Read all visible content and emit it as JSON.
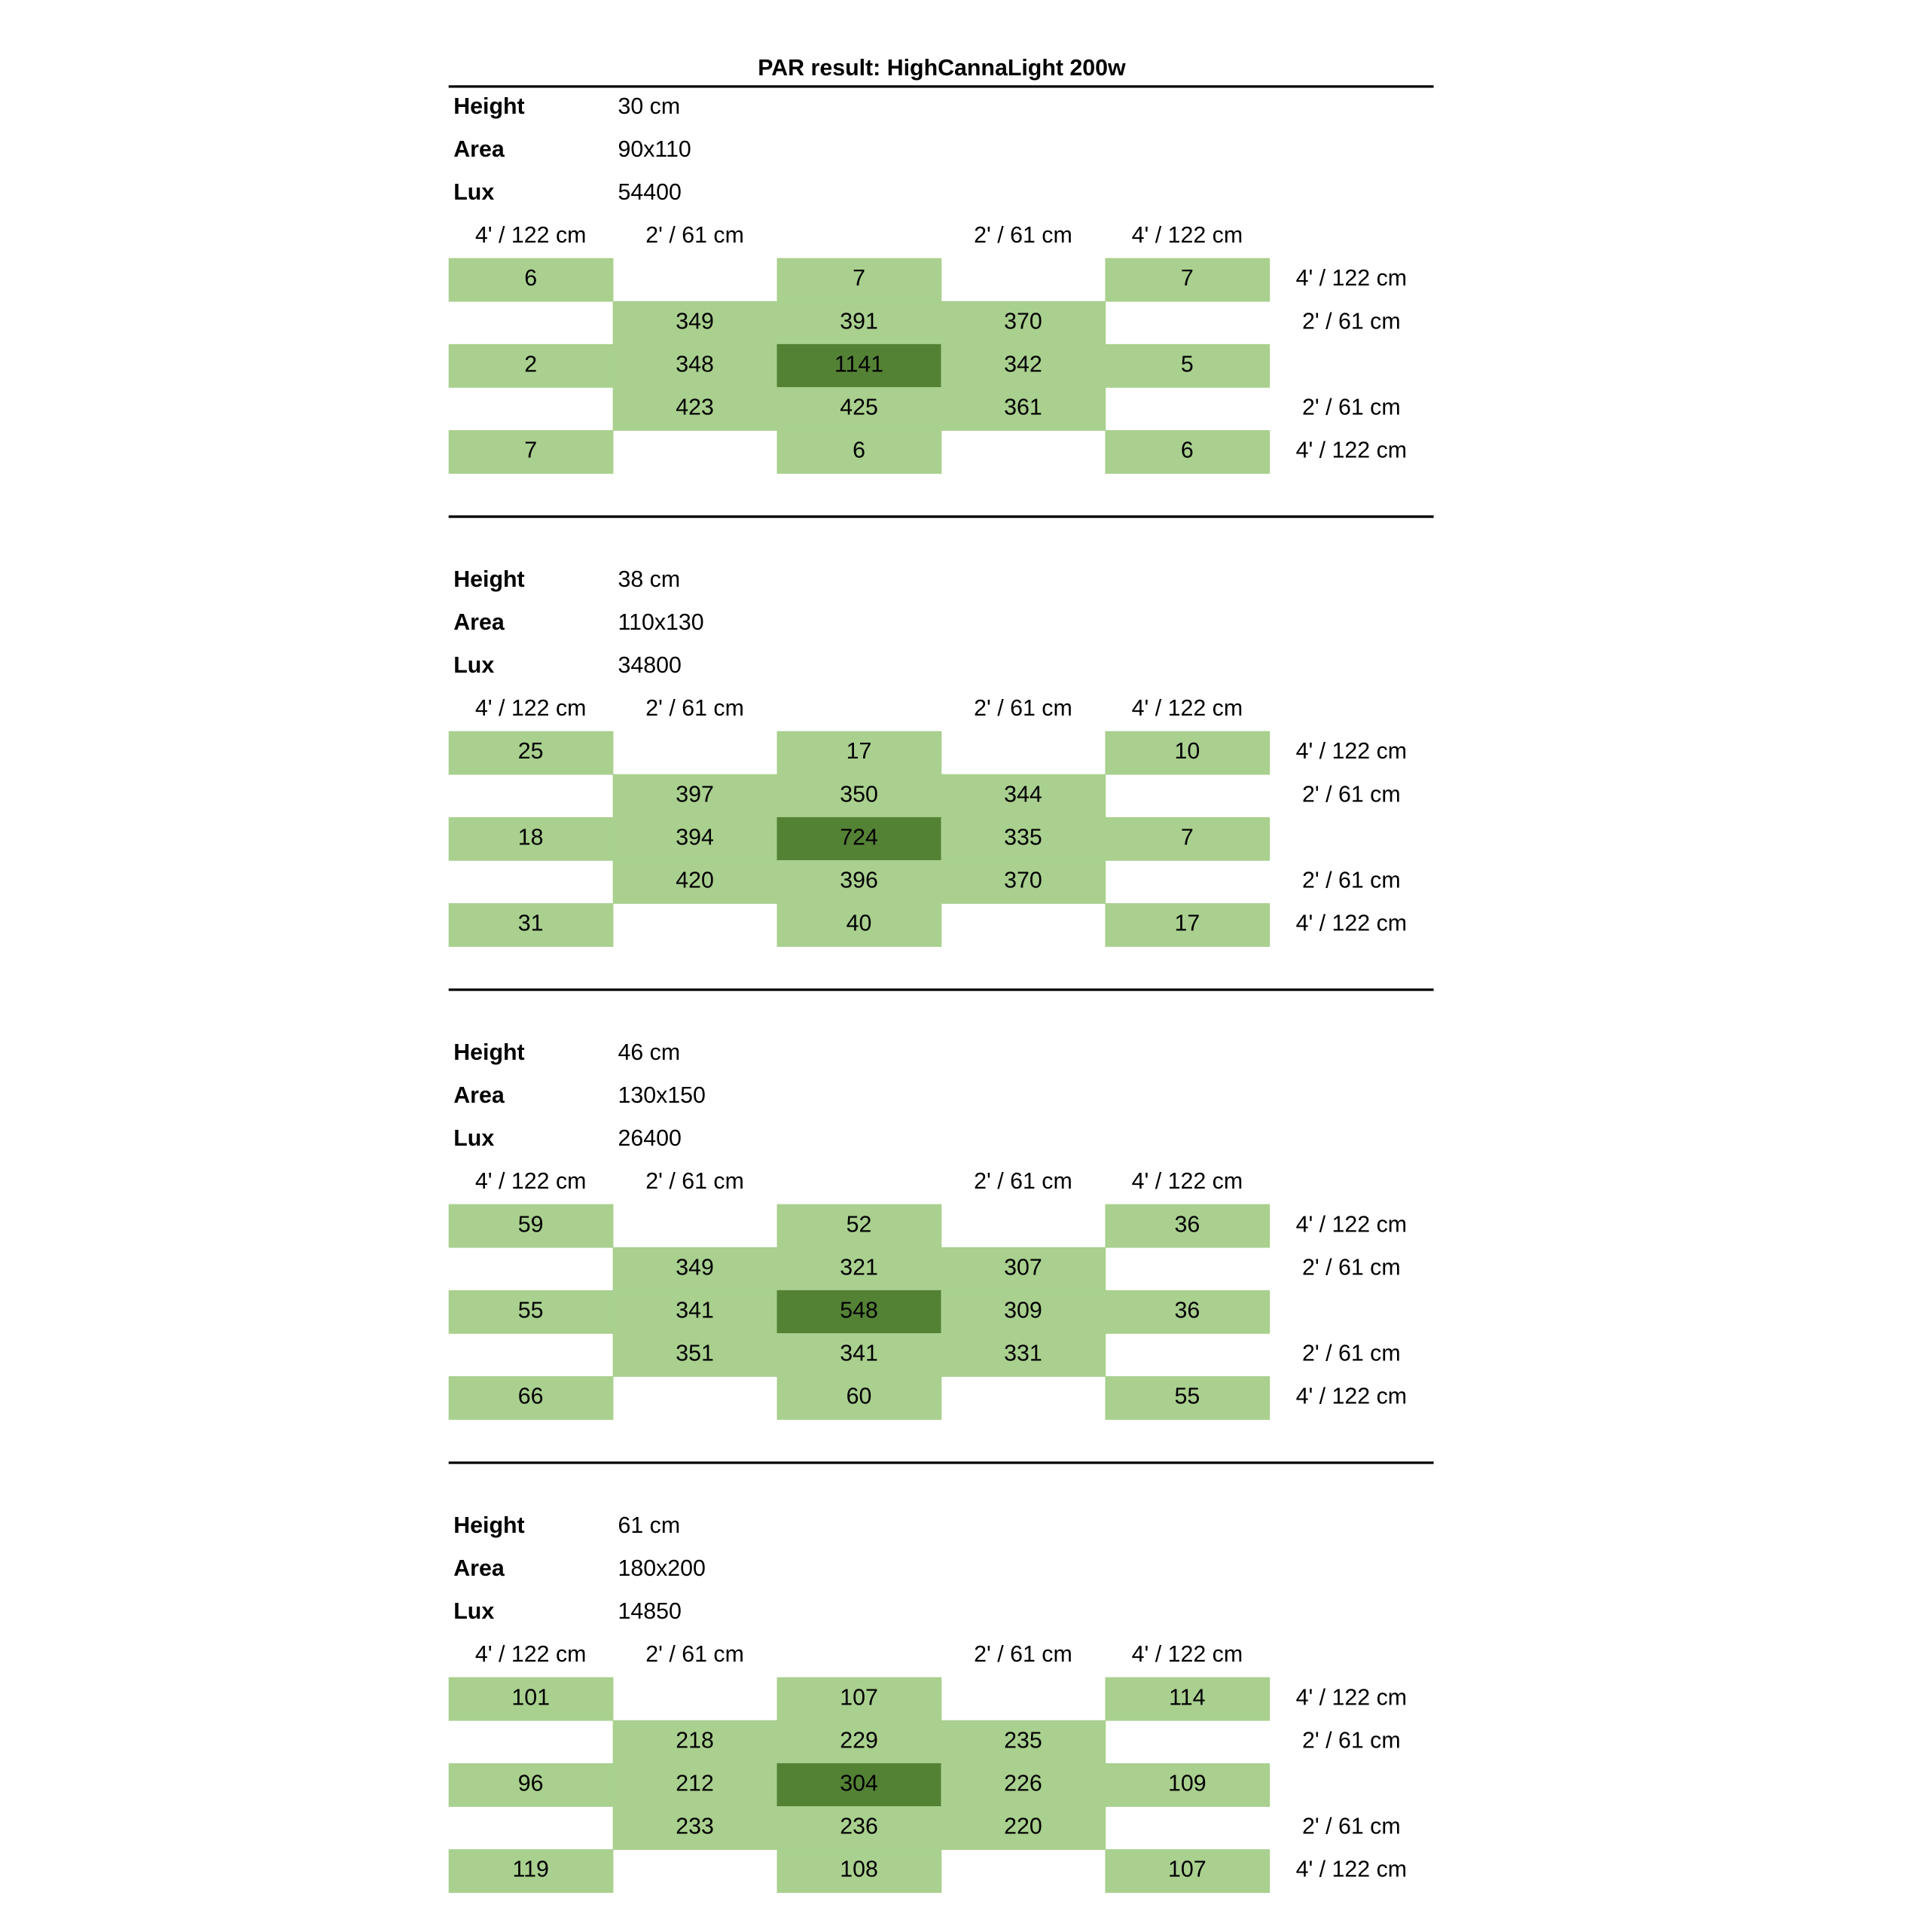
{
  "title": "PAR result: HighCannaLight 200w",
  "colors": {
    "cell": "#a9d08e",
    "peak": "#548235"
  },
  "sections": [
    {
      "fields": [
        {
          "label": "Height",
          "value": "30 cm"
        },
        {
          "label": "Area",
          "value": "90x110"
        },
        {
          "label": "Lux",
          "value": "54400"
        }
      ],
      "column_headers": [
        "4' / 122 cm",
        "2' / 61 cm",
        null,
        "2' / 61 cm",
        "4' / 122 cm"
      ],
      "rows": [
        {
          "cells": [
            6,
            null,
            7,
            null,
            7
          ],
          "label": "4' / 122 cm"
        },
        {
          "cells": [
            null,
            349,
            391,
            370,
            null
          ],
          "label": "2' / 61 cm"
        },
        {
          "cells": [
            2,
            348,
            1141,
            342,
            5
          ],
          "label": null
        },
        {
          "cells": [
            null,
            423,
            425,
            361,
            null
          ],
          "label": "2' / 61 cm"
        },
        {
          "cells": [
            7,
            null,
            6,
            null,
            6
          ],
          "label": "4' / 122 cm"
        }
      ]
    },
    {
      "fields": [
        {
          "label": "Height",
          "value": "38 cm"
        },
        {
          "label": "Area",
          "value": "110x130"
        },
        {
          "label": "Lux",
          "value": "34800"
        }
      ],
      "column_headers": [
        "4' / 122 cm",
        "2' / 61 cm",
        null,
        "2' / 61 cm",
        "4' / 122 cm"
      ],
      "rows": [
        {
          "cells": [
            25,
            null,
            17,
            null,
            10
          ],
          "label": "4' / 122 cm"
        },
        {
          "cells": [
            null,
            397,
            350,
            344,
            null
          ],
          "label": "2' / 61 cm"
        },
        {
          "cells": [
            18,
            394,
            724,
            335,
            7
          ],
          "label": null
        },
        {
          "cells": [
            null,
            420,
            396,
            370,
            null
          ],
          "label": "2' / 61 cm"
        },
        {
          "cells": [
            31,
            null,
            40,
            null,
            17
          ],
          "label": "4' / 122 cm"
        }
      ]
    },
    {
      "fields": [
        {
          "label": "Height",
          "value": "46 cm"
        },
        {
          "label": "Area",
          "value": "130x150"
        },
        {
          "label": "Lux",
          "value": "26400"
        }
      ],
      "column_headers": [
        "4' / 122 cm",
        "2' / 61 cm",
        null,
        "2' / 61 cm",
        "4' / 122 cm"
      ],
      "rows": [
        {
          "cells": [
            59,
            null,
            52,
            null,
            36
          ],
          "label": "4' / 122 cm"
        },
        {
          "cells": [
            null,
            349,
            321,
            307,
            null
          ],
          "label": "2' / 61 cm"
        },
        {
          "cells": [
            55,
            341,
            548,
            309,
            36
          ],
          "label": null
        },
        {
          "cells": [
            null,
            351,
            341,
            331,
            null
          ],
          "label": "2' / 61 cm"
        },
        {
          "cells": [
            66,
            null,
            60,
            null,
            55
          ],
          "label": "4' / 122 cm"
        }
      ]
    },
    {
      "fields": [
        {
          "label": "Height",
          "value": "61 cm"
        },
        {
          "label": "Area",
          "value": "180x200"
        },
        {
          "label": "Lux",
          "value": "14850"
        }
      ],
      "column_headers": [
        "4' / 122 cm",
        "2' / 61 cm",
        null,
        "2' / 61 cm",
        "4' / 122 cm"
      ],
      "rows": [
        {
          "cells": [
            101,
            null,
            107,
            null,
            114
          ],
          "label": "4' / 122 cm"
        },
        {
          "cells": [
            null,
            218,
            229,
            235,
            null
          ],
          "label": "2' / 61 cm"
        },
        {
          "cells": [
            96,
            212,
            304,
            226,
            109
          ],
          "label": null
        },
        {
          "cells": [
            null,
            233,
            236,
            220,
            null
          ],
          "label": "2' / 61 cm"
        },
        {
          "cells": [
            119,
            null,
            108,
            null,
            107
          ],
          "label": "4' / 122 cm"
        }
      ]
    }
  ]
}
